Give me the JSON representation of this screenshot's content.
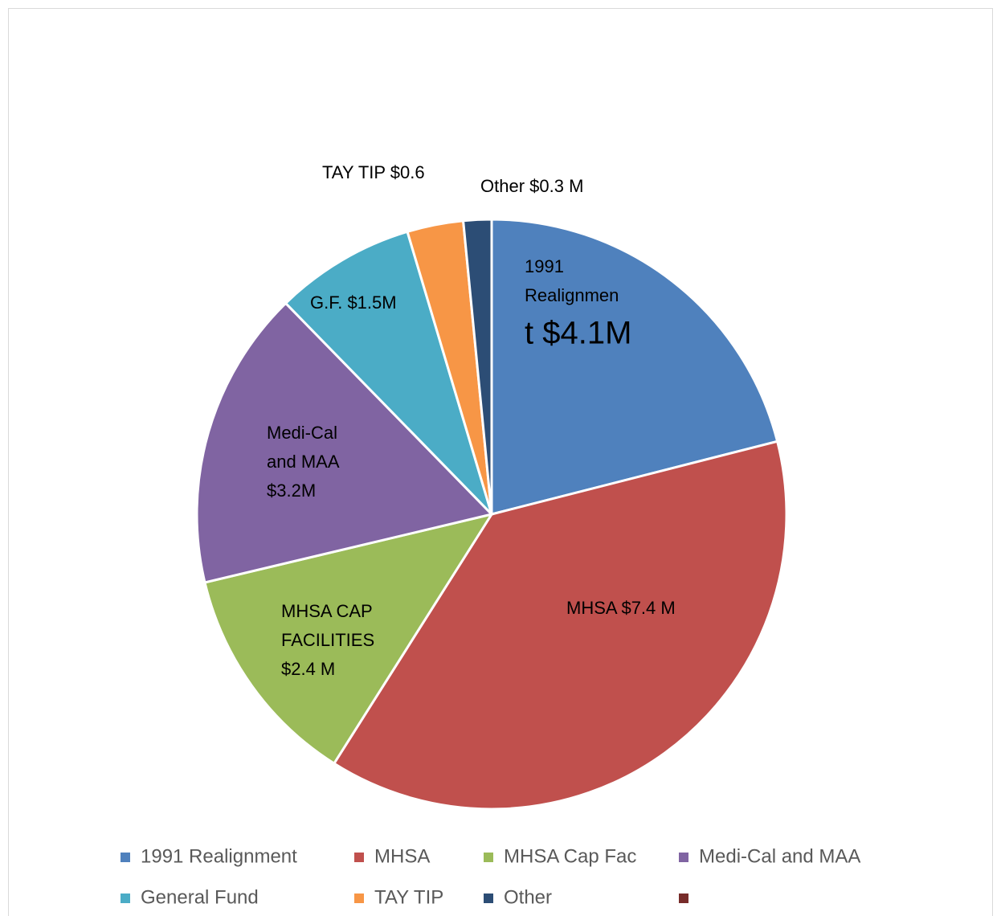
{
  "chart_data": {
    "type": "pie",
    "categories": [
      "1991 Realignment",
      "MHSA",
      "MHSA Cap Fac",
      "Medi-Cal and MAA",
      "General Fund",
      "TAY TIP",
      "Other",
      null
    ],
    "values": [
      4.1,
      7.4,
      2.4,
      3.2,
      1.5,
      0.6,
      0.3,
      null
    ],
    "value_labels": [
      [
        "1991",
        "Realignmen",
        "t $4.1M"
      ],
      [
        "MHSA $7.4 M"
      ],
      [
        "MHSA CAP",
        "FACILITIES",
        "$2.4 M"
      ],
      [
        "Medi-Cal",
        "and MAA",
        "$3.2M"
      ],
      [
        "G.F. $1.5M"
      ],
      [
        "TAY TIP $0.6"
      ],
      [
        "Other $0.3 M"
      ],
      null
    ],
    "colors": [
      "#4f81bd",
      "#c0504d",
      "#9bbb59",
      "#8064a2",
      "#4bacc6",
      "#f79646",
      "#2c4d75",
      "#772c2a"
    ],
    "legend": "bottom"
  }
}
